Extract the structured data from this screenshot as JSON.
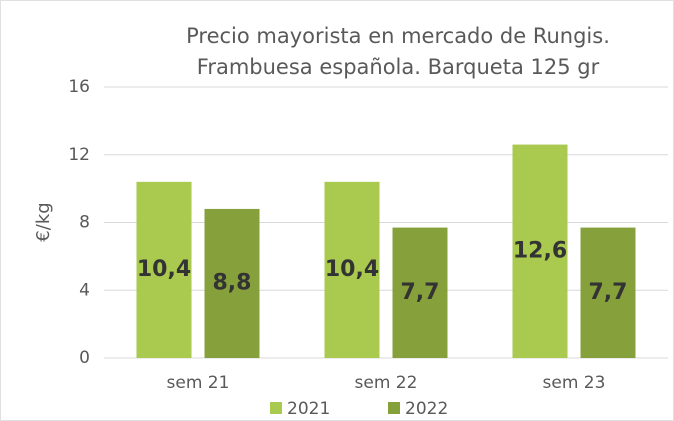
{
  "chart_data": {
    "type": "bar",
    "title": [
      "Precio mayorista en mercado de Rungis.",
      "Frambuesa española. Barqueta 125 gr"
    ],
    "y_label": "€/kg",
    "categories": [
      "sem 21",
      "sem 22",
      "sem 23"
    ],
    "series": [
      {
        "name": "2021",
        "color": "#a9c94f",
        "values": [
          10.4,
          10.4,
          12.6
        ],
        "value_labels": [
          "10,4",
          "10,4",
          "12,6"
        ]
      },
      {
        "name": "2022",
        "color": "#86a03b",
        "values": [
          8.8,
          7.7,
          7.7
        ],
        "value_labels": [
          "8,8",
          "7,7",
          "7,7"
        ]
      }
    ],
    "ylim": [
      0,
      16
    ],
    "yticks": [
      0,
      4,
      8,
      12,
      16
    ],
    "grid": true,
    "legend": "bottom"
  }
}
